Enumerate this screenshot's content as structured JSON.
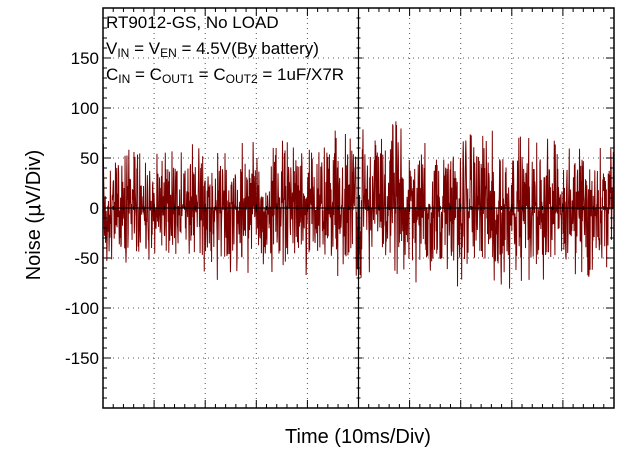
{
  "chart_data": {
    "type": "line",
    "title": "",
    "xlabel": "Time  (10ms/Div)",
    "ylabel_prefix": "Noise  (",
    "ylabel_mu": "μ",
    "ylabel_suffix": "V/Div)",
    "ylim": [
      -200,
      200
    ],
    "xlim": [
      0,
      10
    ],
    "x_major_divisions": 10,
    "y_major_step": 50,
    "grid": "dotted",
    "y_ticks": [
      {
        "value": 150,
        "label": "150"
      },
      {
        "value": 100,
        "label": "100"
      },
      {
        "value": 50,
        "label": "50"
      },
      {
        "value": 0,
        "label": "0"
      },
      {
        "value": -50,
        "label": "-50"
      },
      {
        "value": -100,
        "label": "-100"
      },
      {
        "value": -150,
        "label": "-150"
      }
    ],
    "series": [
      {
        "color": "#7a0000",
        "envelope": {
          "x": [
            0,
            0.5,
            1,
            1.5,
            2,
            2.5,
            3,
            3.5,
            4,
            4.5,
            5,
            5.5,
            5.8,
            6,
            6.5,
            7,
            7.5,
            8,
            8.5,
            9,
            9.5,
            10
          ],
          "upper": [
            70,
            60,
            55,
            62,
            68,
            60,
            72,
            68,
            85,
            78,
            85,
            82,
            95,
            70,
            72,
            75,
            78,
            78,
            68,
            80,
            68,
            60
          ],
          "lower": [
            -55,
            -65,
            -60,
            -70,
            -70,
            -75,
            -65,
            -70,
            -75,
            -72,
            -70,
            -72,
            -70,
            -75,
            -78,
            -80,
            -80,
            -85,
            -70,
            -80,
            -70,
            -55
          ]
        }
      }
    ],
    "annotations": [
      {
        "parts": [
          {
            "text": "RT9012-GS, No LOAD",
            "sub": false
          }
        ]
      },
      {
        "parts": [
          {
            "text": "V",
            "sub": false
          },
          {
            "text": "IN",
            "sub": true
          },
          {
            "text": " = V",
            "sub": false
          },
          {
            "text": "EN",
            "sub": true
          },
          {
            "text": " = 4.5V(By battery)",
            "sub": false
          }
        ]
      },
      {
        "parts": [
          {
            "text": "C",
            "sub": false
          },
          {
            "text": "IN",
            "sub": true
          },
          {
            "text": " = C",
            "sub": false
          },
          {
            "text": "OUT1",
            "sub": true
          },
          {
            "text": " = C",
            "sub": false
          },
          {
            "text": "OUT2",
            "sub": true
          },
          {
            "text": " = 1uF/X7R",
            "sub": false
          }
        ]
      }
    ]
  }
}
